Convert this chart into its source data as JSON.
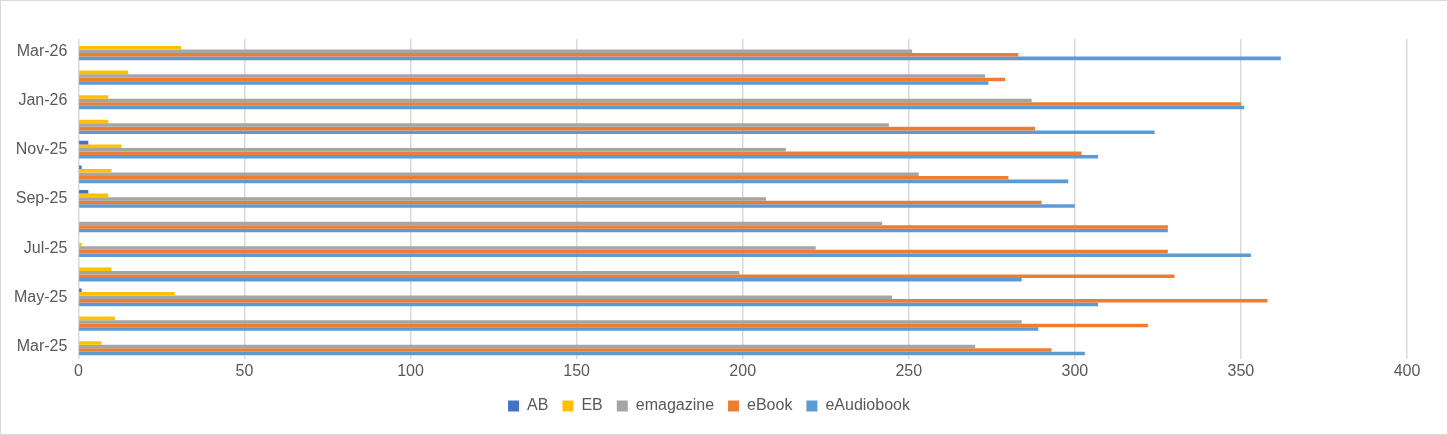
{
  "chart_data": {
    "type": "bar",
    "orientation": "horizontal",
    "categories": [
      "Mar-26",
      null,
      "Jan-26",
      null,
      "Nov-25",
      null,
      "Sep-25",
      null,
      "Jul-25",
      null,
      "May-25",
      null,
      "Mar-25"
    ],
    "series": [
      {
        "name": "AB",
        "color": "#4472c4",
        "values": [
          0,
          0,
          0,
          0,
          3,
          1,
          3,
          0,
          0,
          0,
          1,
          0,
          0
        ]
      },
      {
        "name": "EB",
        "color": "#ffc000",
        "values": [
          31,
          15,
          9,
          9,
          13,
          10,
          9,
          0,
          1,
          10,
          29,
          11,
          7
        ]
      },
      {
        "name": "emagazine",
        "color": "#a5a5a5",
        "values": [
          251,
          273,
          287,
          244,
          213,
          253,
          207,
          242,
          222,
          199,
          245,
          284,
          270
        ]
      },
      {
        "name": "eBook",
        "color": "#ed7d31",
        "values": [
          283,
          279,
          350,
          288,
          302,
          280,
          290,
          328,
          328,
          330,
          358,
          322,
          293
        ]
      },
      {
        "name": "eAudiobook",
        "color": "#5b9bd5",
        "values": [
          362,
          274,
          351,
          324,
          307,
          298,
          300,
          328,
          353,
          284,
          307,
          289,
          303
        ]
      }
    ],
    "xlim": [
      0,
      400
    ],
    "xticks": [
      0,
      50,
      100,
      150,
      200,
      250,
      300,
      350,
      400
    ],
    "grid": "x",
    "legend": "bottom"
  }
}
